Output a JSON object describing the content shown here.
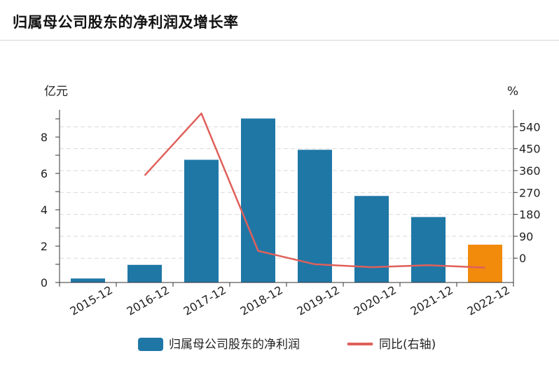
{
  "header": {
    "title": "归属母公司股东的净利润及增长率"
  },
  "chart_data": {
    "type": "bar",
    "categories": [
      "2015-12",
      "2016-12",
      "2017-12",
      "2018-12",
      "2019-12",
      "2020-12",
      "2021-12",
      "2022-12"
    ],
    "series": [
      {
        "name": "归属母公司股东的净利润",
        "type": "bar",
        "axis": "left",
        "values": [
          0.22,
          0.97,
          6.75,
          9.02,
          7.3,
          4.76,
          3.6,
          2.08
        ],
        "color": "#1f77a6",
        "highlight_color": "#f28a0c",
        "highlight_index": 7
      },
      {
        "name": "同比(右轴)",
        "type": "line",
        "axis": "right",
        "values": [
          null,
          340,
          595,
          30,
          -25,
          -37,
          -29,
          -39
        ],
        "color": "#e0605a"
      }
    ],
    "ylabel_left": "亿元",
    "ylabel_right": "%",
    "ylim_left": [
      0,
      9.5
    ],
    "ylim_right": [
      -100,
      610
    ],
    "yticks_left": [
      0,
      2,
      4,
      6,
      8
    ],
    "yticks_right": [
      0,
      90,
      180,
      270,
      360,
      450,
      540
    ],
    "grid": true,
    "legend_position": "bottom"
  }
}
